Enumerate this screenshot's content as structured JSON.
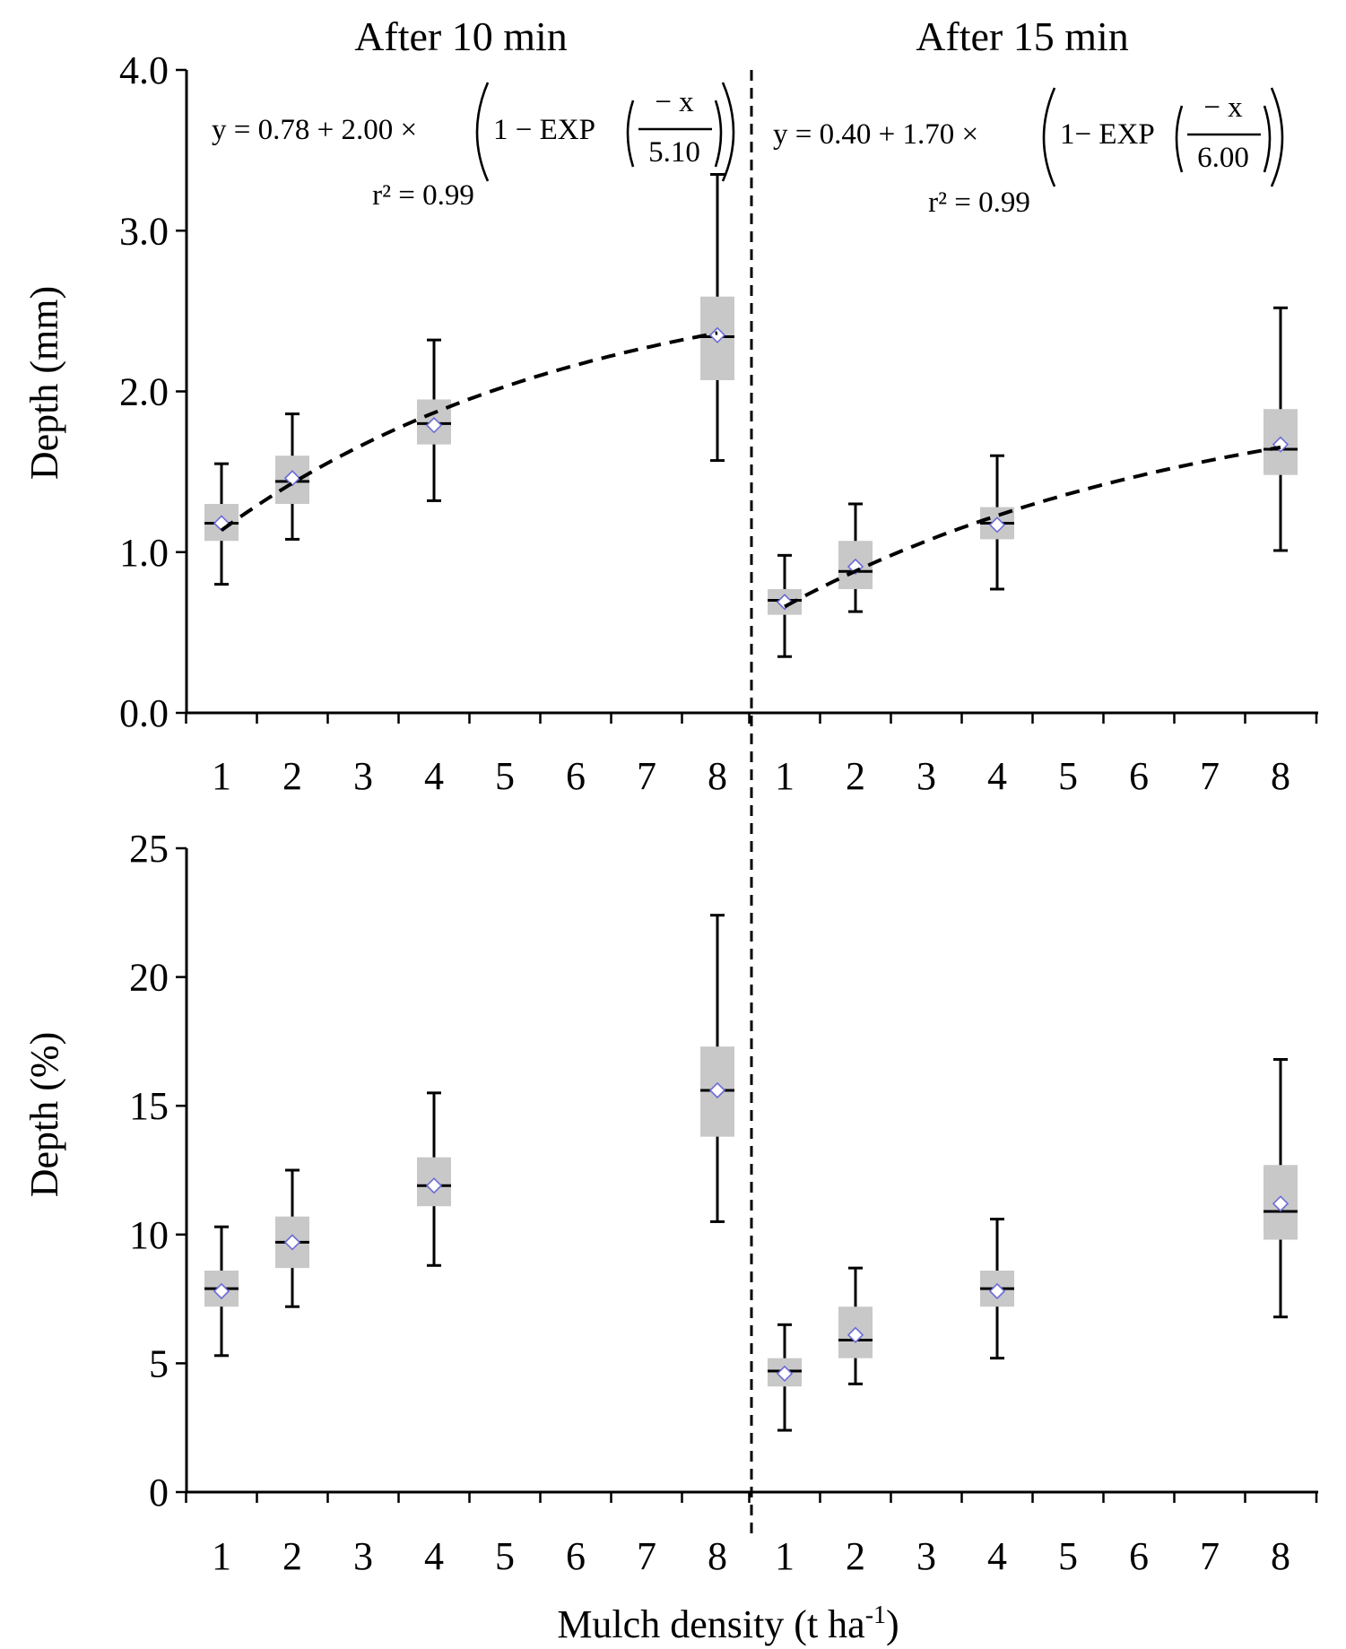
{
  "chart_data": [
    {
      "type": "box",
      "panel": "top",
      "ylabel": "Depth (mm)",
      "ylim": [
        0.0,
        4.0
      ],
      "yticks": [
        "0.0",
        "1.0",
        "2.0",
        "3.0",
        "4.0"
      ],
      "x_categories": [
        "1",
        "2",
        "3",
        "4",
        "5",
        "6",
        "7",
        "8"
      ],
      "groups": [
        {
          "title": "After 10 min",
          "equation": {
            "prefix": "y = 0.78 + 2.00 × ",
            "one_minus_exp": "1 − EXP",
            "numerator": "− x",
            "denominator": "5.10",
            "r2": "r² = 0.99"
          },
          "fit": {
            "a": 0.78,
            "b": 2.0,
            "c": 5.1,
            "x_range": [
              1,
              8
            ]
          },
          "boxes": [
            {
              "x": 1,
              "whisker_low": 0.8,
              "q1": 1.07,
              "median": 1.18,
              "q3": 1.3,
              "whisker_high": 1.55,
              "mean": 1.18
            },
            {
              "x": 2,
              "whisker_low": 1.08,
              "q1": 1.3,
              "median": 1.44,
              "q3": 1.6,
              "whisker_high": 1.86,
              "mean": 1.46
            },
            {
              "x": 4,
              "whisker_low": 1.32,
              "q1": 1.67,
              "median": 1.8,
              "q3": 1.95,
              "whisker_high": 2.32,
              "mean": 1.79
            },
            {
              "x": 8,
              "whisker_low": 1.57,
              "q1": 2.07,
              "median": 2.34,
              "q3": 2.59,
              "whisker_high": 3.35,
              "mean": 2.35
            }
          ]
        },
        {
          "title": "After 15 min",
          "equation": {
            "prefix": "y = 0.40 + 1.70 × ",
            "one_minus_exp": "1− EXP",
            "numerator": "− x",
            "denominator": "6.00",
            "r2": "r² = 0.99"
          },
          "fit": {
            "a": 0.4,
            "b": 1.7,
            "c": 6.0,
            "x_range": [
              1,
              8
            ]
          },
          "boxes": [
            {
              "x": 1,
              "whisker_low": 0.35,
              "q1": 0.61,
              "median": 0.7,
              "q3": 0.77,
              "whisker_high": 0.98,
              "mean": 0.69
            },
            {
              "x": 2,
              "whisker_low": 0.63,
              "q1": 0.77,
              "median": 0.88,
              "q3": 1.07,
              "whisker_high": 1.3,
              "mean": 0.91
            },
            {
              "x": 4,
              "whisker_low": 0.77,
              "q1": 1.08,
              "median": 1.18,
              "q3": 1.28,
              "whisker_high": 1.6,
              "mean": 1.17
            },
            {
              "x": 8,
              "whisker_low": 1.01,
              "q1": 1.48,
              "median": 1.64,
              "q3": 1.89,
              "whisker_high": 2.52,
              "mean": 1.67
            }
          ]
        }
      ]
    },
    {
      "type": "box",
      "panel": "bottom",
      "ylabel": "Depth (%)",
      "xlabel": "Mulch density (t ha",
      "xlabel_sup": "-1",
      "xlabel_suffix": ")",
      "ylim": [
        0,
        25
      ],
      "yticks": [
        "0",
        "5",
        "10",
        "15",
        "20",
        "25"
      ],
      "x_categories": [
        "1",
        "2",
        "3",
        "4",
        "5",
        "6",
        "7",
        "8"
      ],
      "groups": [
        {
          "title": "After 10 min",
          "boxes": [
            {
              "x": 1,
              "whisker_low": 5.3,
              "q1": 7.2,
              "median": 7.9,
              "q3": 8.6,
              "whisker_high": 10.3,
              "mean": 7.8
            },
            {
              "x": 2,
              "whisker_low": 7.2,
              "q1": 8.7,
              "median": 9.7,
              "q3": 10.7,
              "whisker_high": 12.5,
              "mean": 9.7
            },
            {
              "x": 4,
              "whisker_low": 8.8,
              "q1": 11.1,
              "median": 11.9,
              "q3": 13.0,
              "whisker_high": 15.5,
              "mean": 11.9
            },
            {
              "x": 8,
              "whisker_low": 10.5,
              "q1": 13.8,
              "median": 15.6,
              "q3": 17.3,
              "whisker_high": 22.4,
              "mean": 15.6
            }
          ]
        },
        {
          "title": "After 15 min",
          "boxes": [
            {
              "x": 1,
              "whisker_low": 2.4,
              "q1": 4.1,
              "median": 4.7,
              "q3": 5.2,
              "whisker_high": 6.5,
              "mean": 4.6
            },
            {
              "x": 2,
              "whisker_low": 4.2,
              "q1": 5.2,
              "median": 5.9,
              "q3": 7.2,
              "whisker_high": 8.7,
              "mean": 6.1
            },
            {
              "x": 4,
              "whisker_low": 5.2,
              "q1": 7.2,
              "median": 7.9,
              "q3": 8.6,
              "whisker_high": 10.6,
              "mean": 7.8
            },
            {
              "x": 8,
              "whisker_low": 6.8,
              "q1": 9.8,
              "median": 10.9,
              "q3": 12.7,
              "whisker_high": 16.8,
              "mean": 11.2
            }
          ]
        }
      ]
    }
  ]
}
